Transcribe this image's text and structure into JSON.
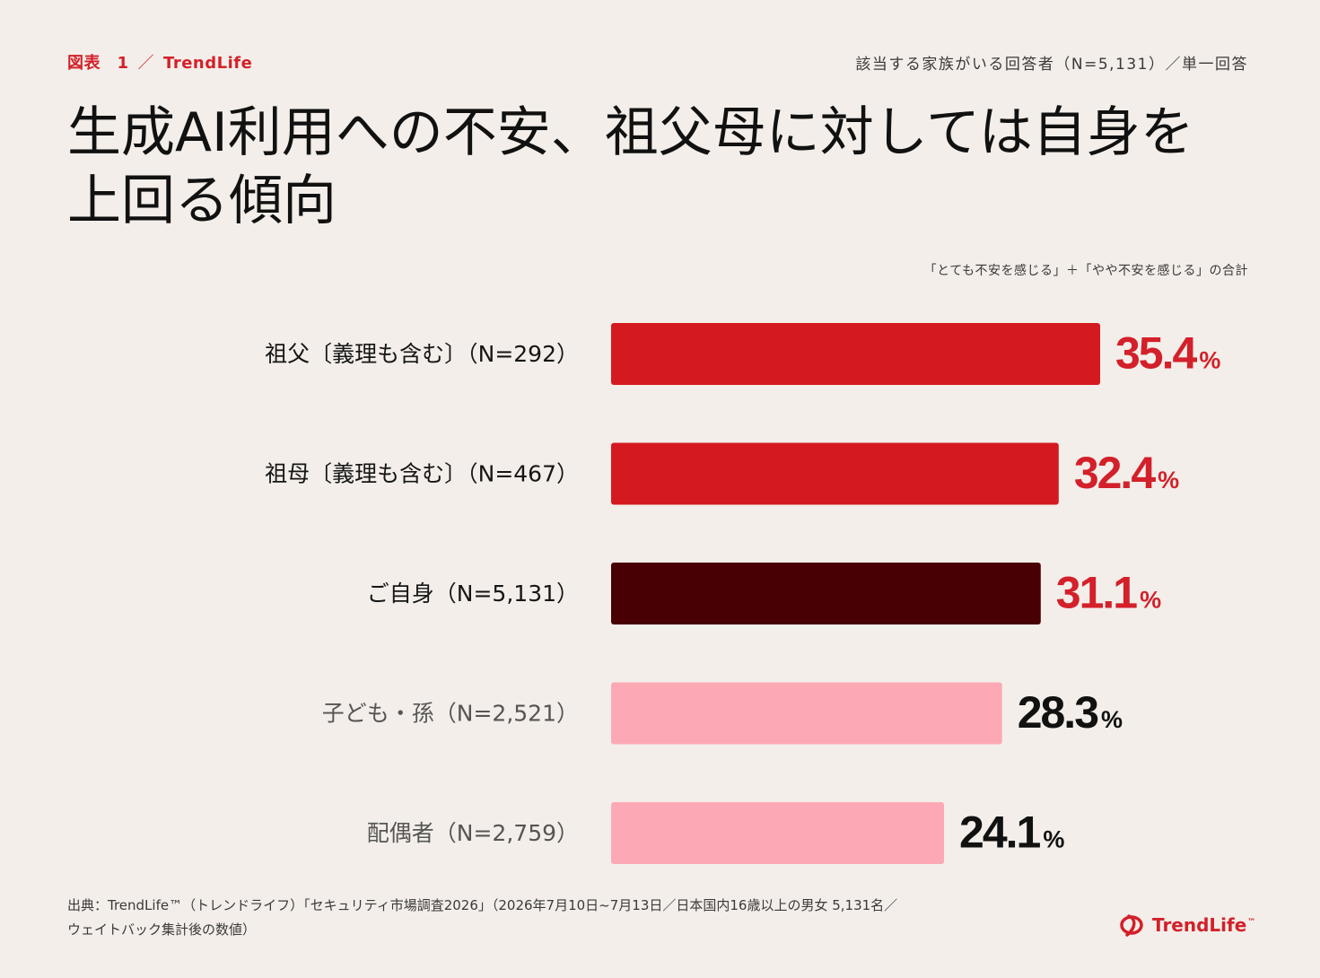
{
  "header": {
    "figure_no": "図表　1",
    "separator": "／",
    "brand": "TrendLife",
    "respondents": "該当する家族がいる回答者（N=5,131）／単一回答"
  },
  "title_line1": "生成AI利用への不安、祖父母に対しては自身を",
  "title_line2": "上回る傾向",
  "note": "「とても不安を感じる」＋「やや不安を感じる」の合計",
  "source_line1": "出典：TrendLife™（トレンドライフ）「セキュリティ市場調査2026」（2026年7月10日~7月13日／日本国内16歳以上の男女 5,131名／",
  "source_line2": "ウェイトバック集計後の数値）",
  "logo": {
    "text": "TrendLife",
    "tm": "™",
    "icon": "trendlife-logo-icon"
  },
  "colors": {
    "background": "#f3eee9",
    "accent": "#d3202a",
    "self": "#480004",
    "pink": "#fda9b5",
    "text": "#161616",
    "label_muted": "#555555"
  },
  "chart_data": {
    "type": "bar",
    "orientation": "horizontal",
    "categories": [
      "祖父〔義理も含む〕（N=292）",
      "祖母〔義理も含む〕（N=467）",
      "ご自身（N=5,131）",
      "子ども・孫（N=2,521）",
      "配偶者（N=2,759）"
    ],
    "values": [
      35.4,
      32.4,
      31.1,
      28.3,
      24.1
    ],
    "value_labels": [
      "35.4",
      "32.4",
      "31.1",
      "28.3",
      "24.1"
    ],
    "unit": "%",
    "bar_colors": [
      "#d41a20",
      "#d41a20",
      "#480004",
      "#fda9b5",
      "#fda9b5"
    ],
    "value_colors": [
      "#d3202a",
      "#d3202a",
      "#d3202a",
      "#111111",
      "#111111"
    ],
    "label_colors": [
      "#161616",
      "#161616",
      "#161616",
      "#555555",
      "#555555"
    ],
    "xlim": [
      0,
      35.4
    ],
    "grid": false,
    "legend": "none"
  }
}
